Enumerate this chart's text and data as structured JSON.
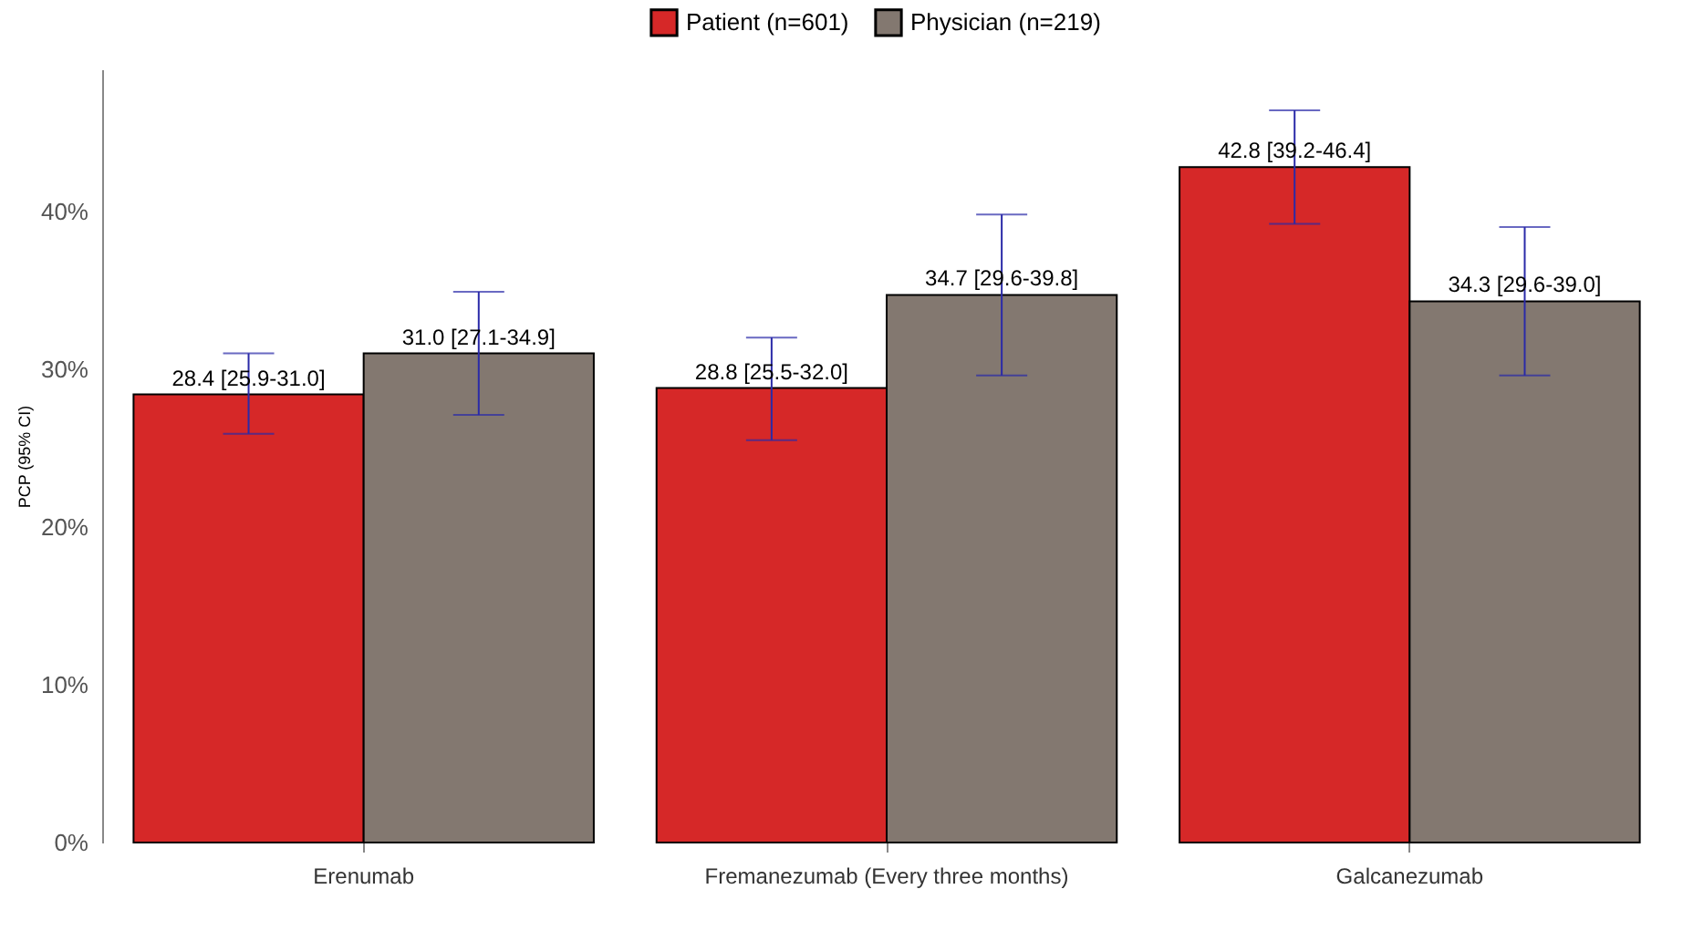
{
  "chart_data": {
    "type": "bar",
    "ylabel": "PCP (95% CI)",
    "categories": [
      "Erenumab",
      "Fremanezumab (Every three months)",
      "Galcanezumab"
    ],
    "series": [
      {
        "name": "Patient (n=601)",
        "color": "#d62828",
        "values": [
          28.4,
          28.8,
          42.8
        ],
        "errors": [
          [
            25.9,
            31.0
          ],
          [
            25.5,
            32.0
          ],
          [
            39.2,
            46.4
          ]
        ],
        "value_labels": [
          "28.4 [25.9-31.0]",
          "28.8 [25.5-32.0]",
          "42.8 [39.2-46.4]"
        ]
      },
      {
        "name": "Physician (n=219)",
        "color": "#837870",
        "values": [
          31.0,
          34.7,
          34.3
        ],
        "errors": [
          [
            27.1,
            34.9
          ],
          [
            29.6,
            39.8
          ],
          [
            29.6,
            39.0
          ]
        ],
        "value_labels": [
          "31.0 [27.1-34.9]",
          "34.7 [29.6-39.8]",
          "34.3 [29.6-39.0]"
        ]
      }
    ],
    "ylim": [
      0,
      49
    ],
    "yticks": [
      {
        "value": 0,
        "label": "0%"
      },
      {
        "value": 10,
        "label": "10%"
      },
      {
        "value": 20,
        "label": "20%"
      },
      {
        "value": 30,
        "label": "30%"
      },
      {
        "value": 40,
        "label": "40%"
      }
    ],
    "grid": false,
    "legend": "top"
  }
}
